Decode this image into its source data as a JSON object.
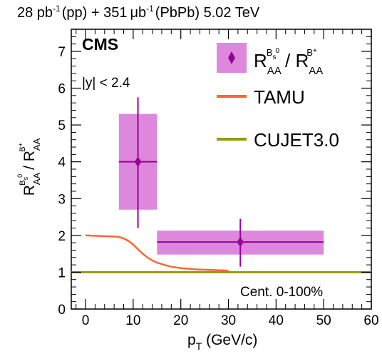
{
  "header": {
    "lumi_pp": "28 pb",
    "lumi_pp_exp": "-1",
    "lumi_pp_sys": "(pp) + 351",
    "lumi_pbpb_unit": "μb",
    "lumi_pbpb_exp": "-1",
    "lumi_pbpb_sys": "(PbPb) 5.02 TeV"
  },
  "labels": {
    "experiment": "CMS",
    "rapidity_cut": "|y| < 2.4",
    "centrality": "Cent. 0-100%"
  },
  "chart_data": {
    "type": "scatter",
    "xlabel": "p_T (GeV/c)",
    "xlabel_main": "p",
    "xlabel_sub": "T",
    "xlabel_rest": " (GeV/c)",
    "ylabel": "R_AA^{B_s^0} / R_AA^{B^+}",
    "xlim": [
      -3,
      60
    ],
    "ylim": [
      0,
      7.6
    ],
    "xticks": [
      0,
      10,
      20,
      30,
      40,
      50,
      60
    ],
    "yticks": [
      0,
      1,
      2,
      3,
      4,
      5,
      6,
      7
    ],
    "legend_position": "top-right",
    "legend": [
      {
        "name": "R_AA^{B_s^0} / R_AA^{B^+}",
        "kind": "data"
      },
      {
        "name": "TAMU",
        "kind": "line"
      },
      {
        "name": "CUJET3.0",
        "kind": "line"
      }
    ],
    "data_series": {
      "color": "#990099",
      "box_color": "#dd88dd",
      "points": [
        {
          "x": 11,
          "y": 4.0,
          "x_low": 7,
          "x_high": 15,
          "stat_low": 2.2,
          "stat_high": 5.75,
          "sys_low": 2.7,
          "sys_high": 5.3
        },
        {
          "x": 32.5,
          "y": 1.82,
          "x_low": 15,
          "x_high": 50,
          "stat_low": 1.15,
          "stat_high": 2.45,
          "sys_low": 1.48,
          "sys_high": 2.13
        }
      ]
    },
    "tamu": {
      "color": "#ff6633",
      "x": [
        0,
        2,
        4,
        6,
        7,
        8,
        9,
        10,
        11,
        12,
        13,
        14,
        15,
        16,
        17,
        18,
        19,
        20,
        21,
        22,
        23,
        24,
        25,
        26,
        27,
        28,
        29,
        30
      ],
      "y": [
        2.0,
        1.99,
        1.98,
        1.97,
        1.96,
        1.92,
        1.85,
        1.75,
        1.62,
        1.5,
        1.4,
        1.32,
        1.26,
        1.22,
        1.18,
        1.15,
        1.13,
        1.11,
        1.1,
        1.09,
        1.08,
        1.07,
        1.07,
        1.06,
        1.06,
        1.05,
        1.05,
        1.04
      ]
    },
    "cujet": {
      "color": "#999900",
      "x": [
        -3,
        60
      ],
      "y": [
        1.0,
        1.0
      ]
    }
  }
}
